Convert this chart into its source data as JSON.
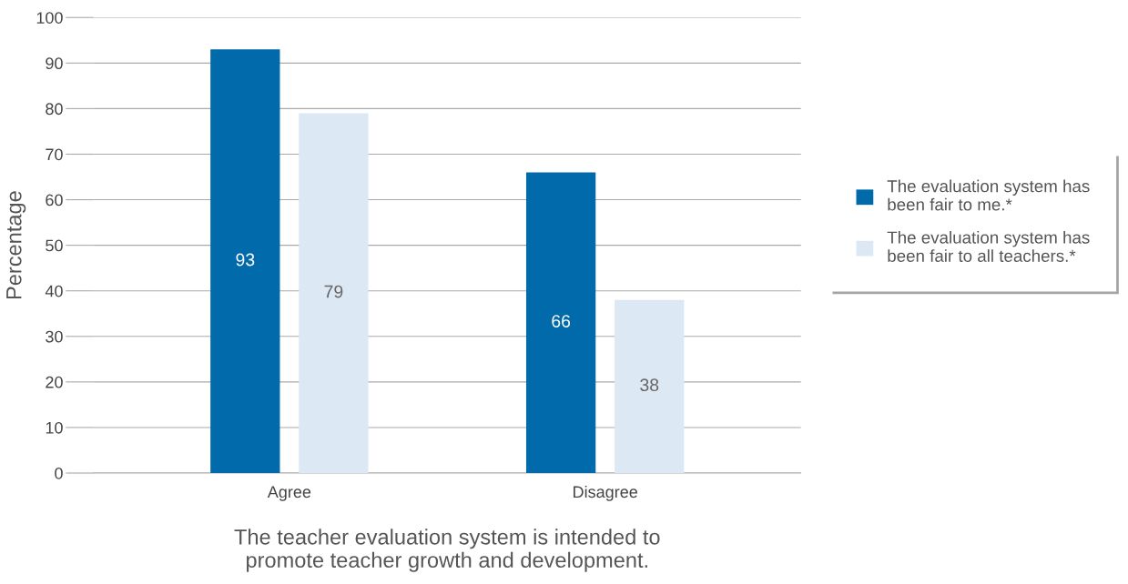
{
  "chart_data": {
    "type": "bar",
    "xlabel": "The teacher evaluation system is intended to\npromote teacher growth and development.",
    "ylabel": "Percentage",
    "categories": [
      "Agree",
      "Disagree"
    ],
    "series": [
      {
        "name": "The evaluation system has\nbeen fair to me.*",
        "color": "#006aab",
        "values": [
          93,
          66
        ]
      },
      {
        "name": "The evaluation system has\nbeen fair to all teachers.*",
        "color": "#dce8f4",
        "values": [
          79,
          38
        ]
      }
    ],
    "ylim": [
      0,
      100
    ],
    "yticks": [
      0,
      10,
      20,
      30,
      40,
      50,
      60,
      70,
      80,
      90,
      100
    ],
    "grid": "y",
    "legend": "right",
    "data_labels": true
  }
}
